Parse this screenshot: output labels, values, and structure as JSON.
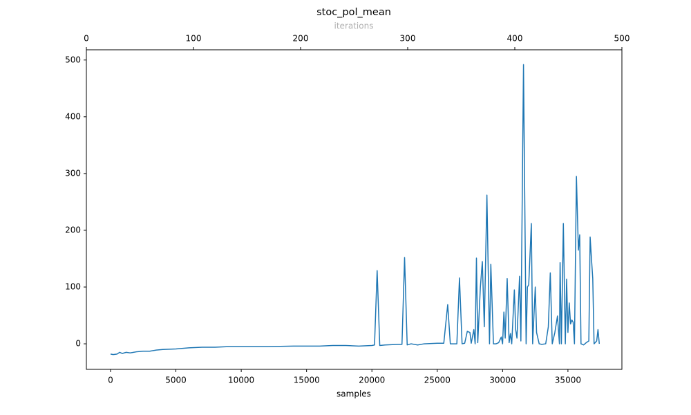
{
  "chart_data": {
    "type": "line",
    "title": "stoc_pol_mean",
    "xlabel": "samples",
    "x2label": "iterations",
    "color": "#1f77b4",
    "x2color": "#b0b0b0",
    "x": [
      0,
      200,
      500,
      700,
      900,
      1200,
      1500,
      2000,
      2500,
      3000,
      3500,
      4000,
      5000,
      6000,
      7000,
      8000,
      9000,
      10000,
      12000,
      14000,
      16000,
      17000,
      18000,
      19000,
      20000,
      20200,
      20400,
      20600,
      21000,
      22000,
      22300,
      22500,
      22700,
      23000,
      23500,
      24000,
      25000,
      25500,
      25800,
      26000,
      26500,
      26700,
      26900,
      27100,
      27300,
      27500,
      27600,
      27800,
      27900,
      28000,
      28100,
      28300,
      28450,
      28600,
      28800,
      29000,
      29100,
      29300,
      29500,
      29700,
      29900,
      30000,
      30100,
      30200,
      30350,
      30500,
      30600,
      30700,
      30900,
      31000,
      31100,
      31300,
      31400,
      31600,
      31800,
      31900,
      32000,
      32200,
      32300,
      32500,
      32600,
      32800,
      33000,
      33300,
      33500,
      33650,
      33800,
      34000,
      34200,
      34350,
      34400,
      34500,
      34650,
      34800,
      34900,
      35000,
      35100,
      35200,
      35300,
      35400,
      35500,
      35650,
      35800,
      35900,
      36000,
      36200,
      36400,
      36600,
      36700,
      36800,
      36900,
      37000,
      37200,
      37300,
      37400
    ],
    "values": [
      -18,
      -19,
      -18,
      -15,
      -17,
      -15,
      -16,
      -14,
      -13,
      -13,
      -11,
      -10,
      -9,
      -7,
      -6,
      -6,
      -5,
      -5,
      -5,
      -4,
      -4,
      -3,
      -3,
      -4,
      -3,
      -2,
      129,
      -3,
      -2,
      -1,
      -1,
      152,
      -2,
      0,
      -2,
      0,
      1,
      1,
      69,
      0,
      0,
      116,
      0,
      1,
      22,
      20,
      1,
      25,
      0,
      151,
      2,
      100,
      145,
      30,
      262,
      0,
      140,
      0,
      0,
      2,
      12,
      0,
      56,
      10,
      115,
      2,
      18,
      0,
      95,
      25,
      10,
      119,
      5,
      492,
      0,
      100,
      104,
      212,
      0,
      100,
      20,
      0,
      -1,
      0,
      30,
      125,
      0,
      20,
      49,
      0,
      143,
      0,
      212,
      0,
      114,
      20,
      72,
      35,
      42,
      38,
      0,
      295,
      165,
      192,
      0,
      -2,
      2,
      5,
      188,
      150,
      115,
      0,
      5,
      25,
      0
    ],
    "xlim": [
      -1850,
      39130
    ],
    "ylim": [
      -45,
      518
    ],
    "x2lim": [
      0,
      500
    ],
    "xticks": [
      0,
      5000,
      10000,
      15000,
      20000,
      25000,
      30000,
      35000
    ],
    "yticks": [
      0,
      100,
      200,
      300,
      400,
      500
    ],
    "x2ticks": [
      0,
      100,
      200,
      300,
      400,
      500
    ]
  }
}
